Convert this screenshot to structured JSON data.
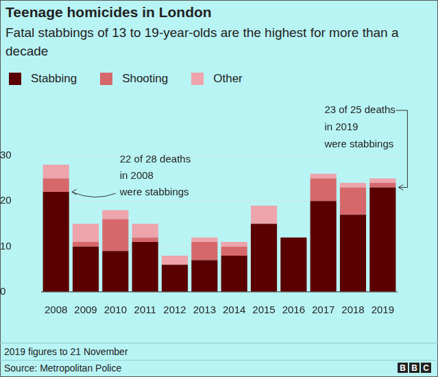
{
  "chart_data": {
    "type": "bar",
    "title": "Teenage homicides in London",
    "subtitle": "Fatal stabbings of 13 to 19-year-olds are the highest for more than a decade",
    "categories": [
      "2008",
      "2009",
      "2010",
      "2011",
      "2012",
      "2013",
      "2014",
      "2015",
      "2016",
      "2017",
      "2018",
      "2019"
    ],
    "series": [
      {
        "name": "Stabbing",
        "color": "#5a0000",
        "values": [
          22,
          10,
          9,
          11,
          6,
          7,
          8,
          15,
          12,
          20,
          17,
          23
        ]
      },
      {
        "name": "Shooting",
        "color": "#d6686c",
        "values": [
          3,
          1,
          7,
          1,
          0,
          4,
          2,
          0,
          0,
          5,
          6,
          1
        ]
      },
      {
        "name": "Other",
        "color": "#eea4ab",
        "values": [
          3,
          4,
          2,
          3,
          2,
          1,
          1,
          4,
          0,
          1,
          1,
          1
        ]
      }
    ],
    "stacked": true,
    "ylim": [
      0,
      30
    ],
    "yticks": [
      0,
      10,
      20,
      30
    ],
    "grid": true,
    "annotations": [
      {
        "category": "2008",
        "lines": [
          "22 of 28 deaths",
          "in 2008",
          "were stabbings"
        ]
      },
      {
        "category": "2019",
        "lines": [
          "23 of 25 deaths",
          "in 2019",
          "were stabbings"
        ]
      }
    ],
    "footnote": "2019 figures to 21 November",
    "source": "Source: Metropolitan Police",
    "logo": "BBC"
  }
}
